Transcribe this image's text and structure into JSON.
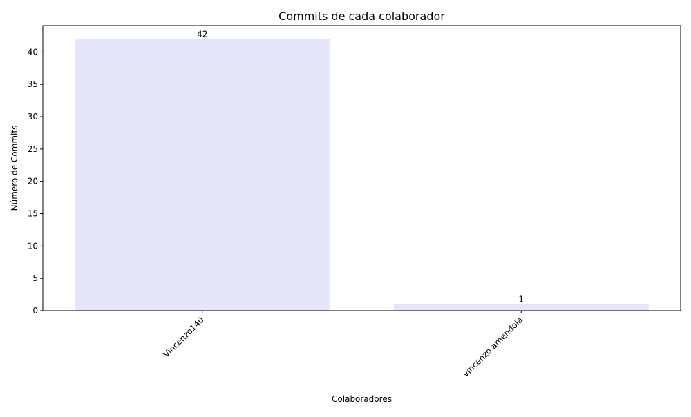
{
  "chart_data": {
    "type": "bar",
    "title": "Commits de cada colaborador",
    "xlabel": "Colaboradores",
    "ylabel": "Número de Commits",
    "categories": [
      "Vincenzo140",
      "vincenzo amendola"
    ],
    "values": [
      42,
      1
    ],
    "data_labels": [
      "42",
      "1"
    ],
    "ylim": [
      0,
      44.1
    ],
    "yticks": [
      0,
      5,
      10,
      15,
      20,
      25,
      30,
      35,
      40
    ],
    "bar_color": "#e6e6fa",
    "grid": false,
    "legend": "none"
  }
}
